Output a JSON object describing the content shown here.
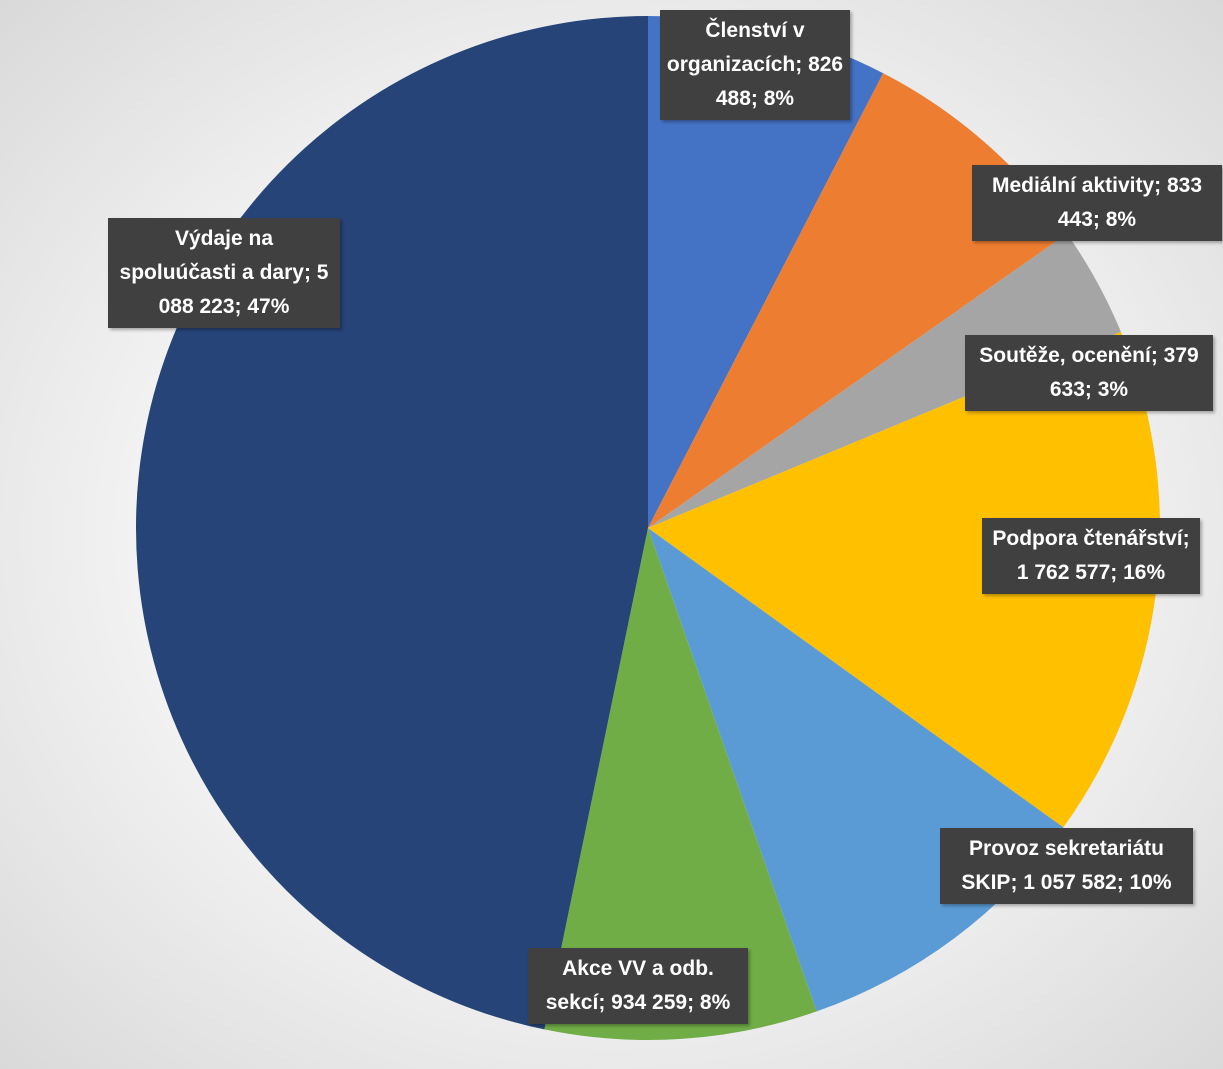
{
  "chart_data": {
    "type": "pie",
    "categories": [
      "Členství v organizacích",
      "Mediální aktivity",
      "Soutěže, ocenění",
      "Podpora čtenářství",
      "Provoz sekretariátu SKIP",
      "Akce VV a odb. sekcí",
      "Výdaje na spoluúčasti a dary"
    ],
    "values": [
      826488,
      833443,
      379633,
      1762577,
      1057582,
      934259,
      5088223
    ],
    "value_labels": [
      "826 488",
      "833 443",
      "379 633",
      "1 762 577",
      "1 057 582",
      "934 259",
      "5 088 223"
    ],
    "percents": [
      8,
      8,
      3,
      16,
      10,
      8,
      47
    ],
    "percent_labels": [
      "8%",
      "8%",
      "3%",
      "16%",
      "10%",
      "8%",
      "47%"
    ],
    "separator": "; ",
    "colors": [
      "#4472c4",
      "#ed7d31",
      "#a5a5a5",
      "#ffc000",
      "#5b9bd5",
      "#70ad47",
      "#264478"
    ]
  }
}
